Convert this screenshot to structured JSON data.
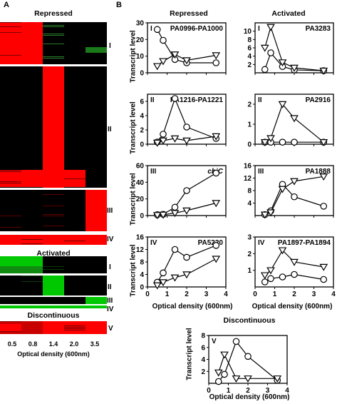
{
  "panel_a": {
    "letter": "A",
    "repressed_title": "Repressed",
    "activated_title": "Activated",
    "discontinuous_title": "Discontinuous",
    "x_ticks": [
      "0.5",
      "0.8",
      "1.4",
      "2.0",
      "3.5"
    ],
    "x_label": "Optical density (600nm)",
    "cluster_labels": [
      "I",
      "II",
      "III",
      "IV",
      "I",
      "II",
      "III",
      "IV",
      "V"
    ]
  },
  "panel_b": {
    "letter": "B",
    "col_titles": [
      "Repressed",
      "Activated"
    ],
    "discontinuous_title": "Discontinuous",
    "ylabel": "Transcript level",
    "xlabel": "Optical density (600nm)"
  },
  "colors": {
    "heat_red": "#ff0000",
    "heat_green": "#00c800",
    "heat_black": "#000000"
  },
  "chart_data": [
    {
      "type": "line",
      "id": "rep-I",
      "roman": "I",
      "gene": "PA0996-PA1000",
      "xlim": [
        0,
        4
      ],
      "ylim": [
        0,
        30
      ],
      "yticks": [
        0,
        10,
        20,
        30
      ],
      "xticks": [
        0,
        1,
        2,
        3,
        4
      ],
      "series": [
        {
          "marker": "circle",
          "x": [
            0.5,
            0.8,
            1.4,
            2.0,
            3.5
          ],
          "y": [
            26,
            19.5,
            8,
            6,
            6
          ]
        },
        {
          "marker": "triangle",
          "x": [
            0.5,
            0.8,
            1.4,
            2.0,
            3.5
          ],
          "y": [
            4,
            7,
            11,
            7.5,
            10.5
          ]
        }
      ]
    },
    {
      "type": "line",
      "id": "act-I",
      "roman": "I",
      "gene": "PA3283",
      "xlim": [
        0,
        4
      ],
      "ylim": [
        0,
        12
      ],
      "yticks": [
        2,
        4,
        6,
        8,
        10
      ],
      "xticks": [
        0,
        1,
        2,
        3,
        4
      ],
      "series": [
        {
          "marker": "circle",
          "x": [
            0.5,
            0.8,
            1.4,
            2.0,
            3.5
          ],
          "y": [
            0.8,
            4.8,
            1.5,
            0.7,
            0.5
          ]
        },
        {
          "marker": "triangle",
          "x": [
            0.5,
            0.8,
            1.4,
            2.0,
            3.5
          ],
          "y": [
            6,
            11,
            2.5,
            1.2,
            0.5
          ]
        }
      ]
    },
    {
      "type": "line",
      "id": "rep-II",
      "roman": "II",
      "gene": "PA1216-PA1221",
      "xlim": [
        0,
        4
      ],
      "ylim": [
        0,
        7
      ],
      "yticks": [
        0,
        2,
        4,
        6
      ],
      "xticks": [
        0,
        1,
        2,
        3,
        4
      ],
      "series": [
        {
          "marker": "circle",
          "x": [
            0.5,
            0.8,
            1.4,
            2.0,
            3.5
          ],
          "y": [
            0.3,
            1.4,
            6.4,
            2.4,
            0.8
          ]
        },
        {
          "marker": "triangle",
          "x": [
            0.5,
            0.8,
            1.4,
            2.0,
            3.5
          ],
          "y": [
            0.2,
            0.5,
            0.8,
            0.5,
            1.1
          ]
        }
      ]
    },
    {
      "type": "line",
      "id": "act-II",
      "roman": "II",
      "gene": "PA2916",
      "xlim": [
        0,
        4
      ],
      "ylim": [
        0,
        2.5
      ],
      "yticks": [
        0,
        1,
        2
      ],
      "xticks": [
        0,
        1,
        2,
        3,
        4
      ],
      "series": [
        {
          "marker": "circle",
          "x": [
            0.5,
            0.8,
            1.4,
            2.0,
            3.5
          ],
          "y": [
            0.1,
            0.1,
            0.1,
            0.1,
            0.1
          ]
        },
        {
          "marker": "triangle",
          "x": [
            0.5,
            0.8,
            1.4,
            2.0,
            3.5
          ],
          "y": [
            0.1,
            0.3,
            2.0,
            1.3,
            0.1
          ]
        }
      ]
    },
    {
      "type": "line",
      "id": "rep-III",
      "roman": "III",
      "gene": "chiC",
      "gene_italic": true,
      "xlim": [
        0,
        4
      ],
      "ylim": [
        0,
        60
      ],
      "yticks": [
        0,
        20,
        40,
        60
      ],
      "xticks": [
        0,
        1,
        2,
        3,
        4
      ],
      "series": [
        {
          "marker": "circle",
          "x": [
            0.5,
            0.8,
            1.4,
            2.0,
            3.5
          ],
          "y": [
            1,
            1.5,
            10,
            30,
            51
          ]
        },
        {
          "marker": "triangle",
          "x": [
            0.5,
            0.8,
            1.4,
            2.0,
            3.5
          ],
          "y": [
            0.5,
            1,
            3,
            6,
            15
          ]
        }
      ]
    },
    {
      "type": "line",
      "id": "act-III",
      "roman": "III",
      "gene": "PA1888",
      "xlim": [
        0,
        4
      ],
      "ylim": [
        0,
        16
      ],
      "yticks": [
        4,
        8,
        12,
        16
      ],
      "xticks": [
        0,
        1,
        2,
        3,
        4
      ],
      "series": [
        {
          "marker": "circle",
          "x": [
            0.5,
            0.8,
            1.4,
            2.0,
            3.5
          ],
          "y": [
            0.3,
            1.5,
            10,
            6,
            3
          ]
        },
        {
          "marker": "triangle",
          "x": [
            0.5,
            0.8,
            1.4,
            2.0,
            3.5
          ],
          "y": [
            0.3,
            1,
            8.5,
            11,
            12.5
          ]
        }
      ]
    },
    {
      "type": "line",
      "id": "rep-IV",
      "roman": "IV",
      "gene": "PA5220",
      "xlim": [
        0,
        4
      ],
      "ylim": [
        0,
        16
      ],
      "yticks": [
        0,
        4,
        8,
        12,
        16
      ],
      "xticks": [
        0,
        1,
        2,
        3,
        4
      ],
      "series": [
        {
          "marker": "circle",
          "x": [
            0.5,
            0.8,
            1.4,
            2.0,
            3.5
          ],
          "y": [
            1.5,
            4.5,
            12,
            9.5,
            13.3
          ]
        },
        {
          "marker": "triangle",
          "x": [
            0.5,
            0.8,
            1.4,
            2.0,
            3.5
          ],
          "y": [
            0.5,
            1.5,
            3,
            4,
            9
          ]
        }
      ]
    },
    {
      "type": "line",
      "id": "act-IV",
      "roman": "IV",
      "gene": "PA1897-PA1894",
      "xlim": [
        0,
        4
      ],
      "ylim": [
        0,
        3
      ],
      "yticks": [
        1,
        2,
        3
      ],
      "xticks": [
        0,
        1,
        2,
        3,
        4
      ],
      "series": [
        {
          "marker": "circle",
          "x": [
            0.5,
            0.8,
            1.4,
            2.0,
            3.5
          ],
          "y": [
            0.3,
            0.5,
            0.6,
            0.75,
            0.45
          ]
        },
        {
          "marker": "triangle",
          "x": [
            0.5,
            0.8,
            1.4,
            2.0,
            3.5
          ],
          "y": [
            0.7,
            1.0,
            2.2,
            1.5,
            1.2
          ]
        }
      ]
    },
    {
      "type": "line",
      "id": "disc-V",
      "roman": "V",
      "gene": "",
      "xlim": [
        0,
        4
      ],
      "ylim": [
        0,
        8
      ],
      "yticks": [
        2,
        4,
        6,
        8
      ],
      "xticks": [
        0,
        1,
        2,
        3,
        4
      ],
      "series": [
        {
          "marker": "circle",
          "x": [
            0.5,
            0.8,
            1.4,
            2.0,
            3.5
          ],
          "y": [
            0.3,
            1.5,
            7,
            4.5,
            0.5
          ]
        },
        {
          "marker": "triangle",
          "x": [
            0.5,
            0.8,
            1.4,
            2.0,
            3.5
          ],
          "y": [
            1.8,
            4.8,
            0.8,
            0.8,
            0.8
          ]
        }
      ]
    }
  ]
}
